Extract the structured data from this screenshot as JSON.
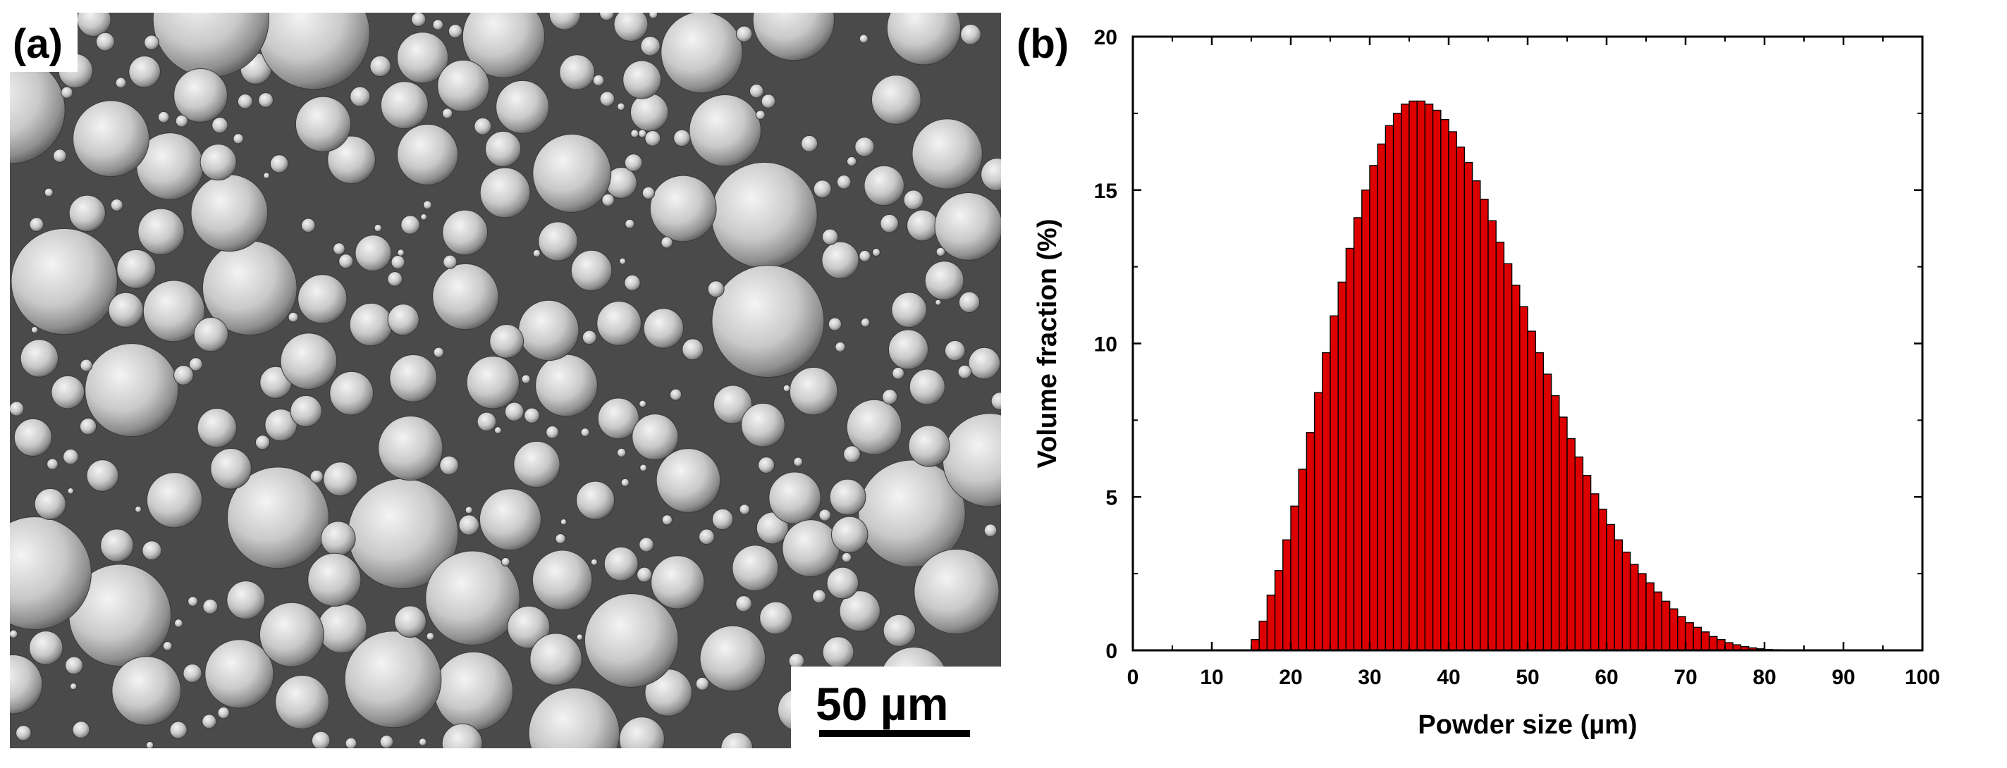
{
  "panel_a": {
    "tag": "(a)",
    "scale_bar": {
      "label": "50 µm"
    }
  },
  "panel_b": {
    "tag": "(b)"
  },
  "chart_data": {
    "type": "bar",
    "xlabel": "Powder size (µm)",
    "ylabel": "Volume fraction (%)",
    "xlim": [
      0,
      100
    ],
    "ylim": [
      0,
      20
    ],
    "xticks": [
      0,
      10,
      20,
      30,
      40,
      50,
      60,
      70,
      80,
      90,
      100
    ],
    "yticks": [
      0,
      5,
      10,
      15,
      20
    ],
    "bar_width": 1,
    "bar_color": "#dd0000",
    "edge_color": "#000000",
    "grid": false,
    "legend": "none",
    "x": [
      15,
      16,
      17,
      18,
      19,
      20,
      21,
      22,
      23,
      24,
      25,
      26,
      27,
      28,
      29,
      30,
      31,
      32,
      33,
      34,
      35,
      36,
      37,
      38,
      39,
      40,
      41,
      42,
      43,
      44,
      45,
      46,
      47,
      48,
      49,
      50,
      51,
      52,
      53,
      54,
      55,
      56,
      57,
      58,
      59,
      60,
      61,
      62,
      63,
      64,
      65,
      66,
      67,
      68,
      69,
      70,
      71,
      72,
      73,
      74,
      75,
      76,
      77,
      78,
      79,
      80,
      81,
      82,
      83,
      84
    ],
    "values": [
      0.35,
      0.95,
      1.8,
      2.6,
      3.6,
      4.7,
      5.9,
      7.1,
      8.4,
      9.7,
      10.9,
      12.0,
      13.1,
      14.1,
      15.0,
      15.8,
      16.5,
      17.1,
      17.5,
      17.8,
      17.9,
      17.9,
      17.8,
      17.6,
      17.3,
      16.9,
      16.4,
      15.9,
      15.3,
      14.7,
      14.0,
      13.3,
      12.6,
      11.9,
      11.2,
      10.4,
      9.7,
      9.0,
      8.3,
      7.6,
      6.9,
      6.3,
      5.7,
      5.1,
      4.6,
      4.1,
      3.6,
      3.2,
      2.8,
      2.5,
      2.2,
      1.9,
      1.6,
      1.35,
      1.1,
      0.9,
      0.75,
      0.6,
      0.45,
      0.35,
      0.25,
      0.18,
      0.12,
      0.08,
      0.05,
      0.03,
      0.02,
      0.01,
      0.0,
      0.0
    ]
  }
}
